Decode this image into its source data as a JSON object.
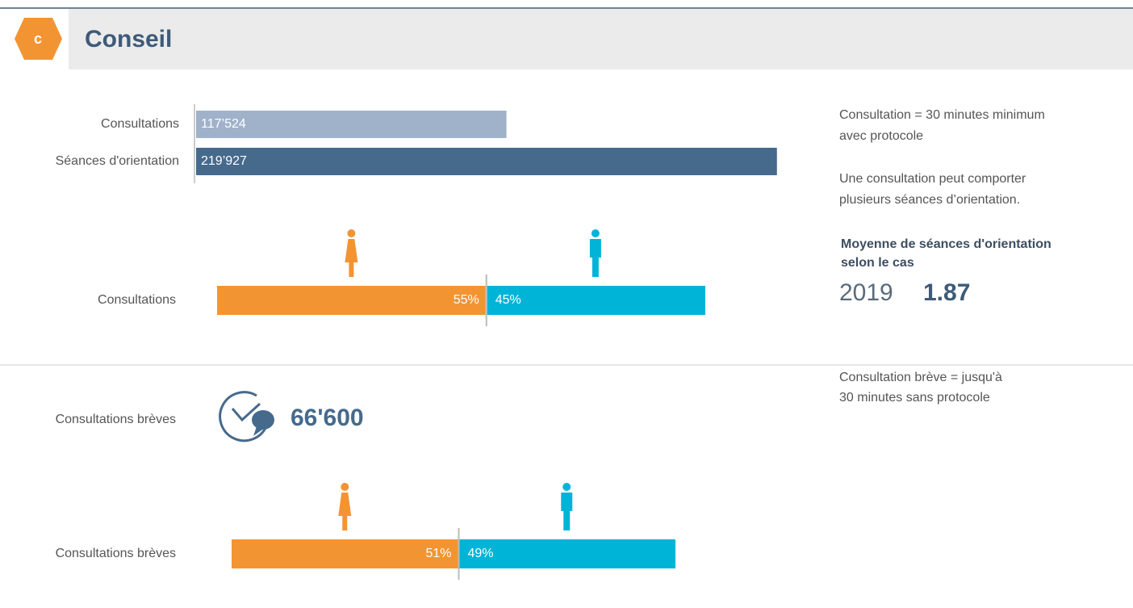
{
  "header": {
    "badge": "c",
    "title": "Conseil"
  },
  "chart_data": [
    {
      "type": "hbar",
      "categories": [
        "Consultations",
        "Séances d'orientation"
      ],
      "values": [
        117524,
        219927
      ],
      "value_labels": [
        "117’524",
        "219’927"
      ],
      "colors": [
        "#a0b2ca",
        "#456a8c"
      ],
      "xlim": [
        0,
        220000
      ]
    },
    {
      "type": "stacked_hbar",
      "categories": [
        "Consultations"
      ],
      "series": [
        {
          "color": "#f39433",
          "values": [
            55
          ],
          "value_labels": [
            "55%"
          ]
        },
        {
          "color": "#00b4d8",
          "values": [
            45
          ],
          "value_labels": [
            "45%"
          ]
        }
      ],
      "xlim": [
        0,
        100
      ]
    },
    {
      "type": "stacked_hbar",
      "categories": [
        "Consultations brèves"
      ],
      "series": [
        {
          "color": "#f39433",
          "values": [
            51
          ],
          "value_labels": [
            "51%"
          ]
        },
        {
          "color": "#00b4d8",
          "values": [
            49
          ],
          "value_labels": [
            "49%"
          ]
        }
      ],
      "xlim": [
        0,
        100
      ]
    }
  ],
  "highlight": {
    "label": "Consultations brèves",
    "value": "66'600"
  },
  "notes": {
    "consultation": [
      "Consultation = 30 minutes minimum",
      "avec protocole"
    ],
    "sessions": [
      "Une consultation peut comporter",
      "plusieurs séances d’orientation."
    ],
    "average_title": [
      "Moyenne de séances d'orientation",
      "selon le cas"
    ],
    "average_year": "2019",
    "average_value": "1.87",
    "short": [
      "Consultation brève = jusqu'à",
      "30 minutes sans protocole"
    ]
  }
}
